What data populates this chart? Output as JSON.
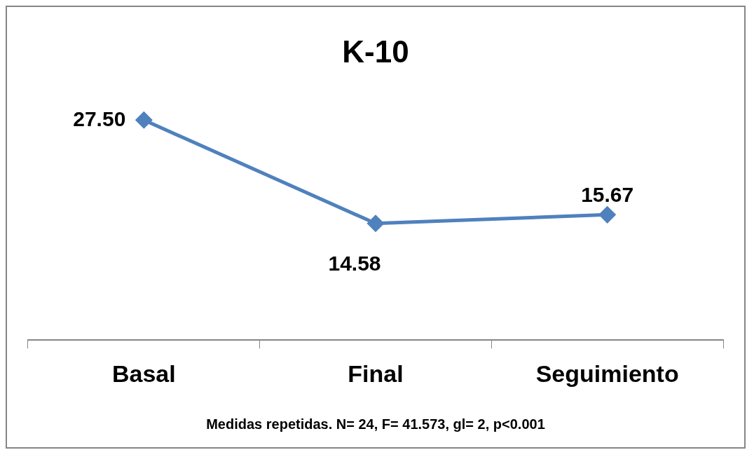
{
  "chart_data": {
    "type": "line",
    "title": "K-10",
    "categories": [
      "Basal",
      "Final",
      "Seguimiento"
    ],
    "series": [
      {
        "color": "#4f81bd",
        "values": [
          27.5,
          14.58,
          15.67
        ],
        "value_labels": [
          "27.50",
          "14.58",
          "15.67"
        ]
      }
    ],
    "marker": "diamond",
    "line_style": "solid",
    "grid": false,
    "legend": false,
    "annotations": [
      "Medidas repetidas. N= 24, F= 41.573, gl= 2, p<0.001"
    ]
  }
}
